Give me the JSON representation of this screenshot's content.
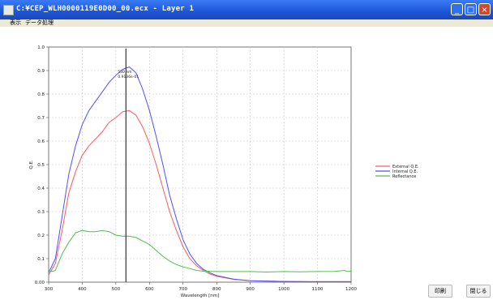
{
  "window": {
    "title": "C:¥CEP_WLH0000119E0D00_00.ecx - Layer 1",
    "buttons": {
      "minimize": "_",
      "maximize": "□",
      "close": "×"
    }
  },
  "menu": [
    "表示",
    "データ処理"
  ],
  "buttons": {
    "print": "印刷",
    "close": "閉じる"
  },
  "cursor_readout": {
    "line1": "530 nm",
    "line2": "0.9136e-01"
  },
  "colors": {
    "external_qe": "#ff5a5a",
    "internal_qe": "#5050ff",
    "reflectance": "#4fbf4f",
    "cursor": "#333333"
  },
  "chart_data": {
    "type": "line",
    "xlabel": "Wavelength [nm]",
    "ylabel": "Q.E.",
    "xlim": [
      300,
      1200
    ],
    "ylim": [
      0,
      1.0
    ],
    "xticks": [
      300,
      400,
      500,
      600,
      700,
      800,
      900,
      1000,
      1100,
      1200
    ],
    "yticks": [
      0,
      0.1,
      0.2,
      0.3,
      0.4,
      0.5,
      0.6,
      0.7,
      0.8,
      0.9,
      1.0
    ],
    "ytick_labels": [
      "0.00",
      "0.1",
      "0.2",
      "0.3",
      "0.4",
      "0.5",
      "0.6",
      "0.7",
      "0.8",
      "0.9",
      "1.0"
    ],
    "grid": true,
    "legend_position": "right",
    "cursor_x": 530,
    "series": [
      {
        "name": "External Q.E.",
        "color": "#ff5a5a",
        "x": [
          300,
          320,
          340,
          360,
          380,
          400,
          420,
          440,
          460,
          480,
          500,
          520,
          540,
          560,
          580,
          600,
          620,
          640,
          660,
          680,
          700,
          720,
          740,
          760,
          780,
          800,
          850,
          900,
          1000,
          1100,
          1200
        ],
        "y": [
          0.03,
          0.08,
          0.22,
          0.38,
          0.47,
          0.54,
          0.58,
          0.61,
          0.64,
          0.68,
          0.7,
          0.725,
          0.73,
          0.71,
          0.66,
          0.59,
          0.5,
          0.4,
          0.3,
          0.22,
          0.15,
          0.1,
          0.07,
          0.05,
          0.035,
          0.025,
          0.012,
          0.006,
          0.003,
          0.002,
          0.002
        ]
      },
      {
        "name": "Internal Q.E.",
        "color": "#5050ff",
        "x": [
          300,
          320,
          340,
          360,
          380,
          400,
          420,
          440,
          460,
          480,
          500,
          520,
          540,
          560,
          580,
          600,
          620,
          640,
          660,
          680,
          700,
          720,
          740,
          760,
          780,
          800,
          850,
          900,
          1000,
          1100,
          1200
        ],
        "y": [
          0.04,
          0.1,
          0.28,
          0.46,
          0.58,
          0.67,
          0.73,
          0.77,
          0.81,
          0.85,
          0.88,
          0.905,
          0.915,
          0.89,
          0.82,
          0.73,
          0.62,
          0.5,
          0.37,
          0.27,
          0.18,
          0.12,
          0.08,
          0.055,
          0.04,
          0.028,
          0.013,
          0.006,
          0.003,
          0.002,
          0.002
        ]
      },
      {
        "name": "Reflectance",
        "color": "#4fbf4f",
        "x": [
          300,
          310,
          320,
          340,
          360,
          380,
          400,
          420,
          440,
          460,
          480,
          500,
          520,
          540,
          560,
          580,
          600,
          620,
          640,
          660,
          680,
          700,
          720,
          740,
          760,
          800,
          850,
          900,
          950,
          1000,
          1050,
          1100,
          1150,
          1180,
          1190,
          1200
        ],
        "y": [
          0.05,
          0.045,
          0.05,
          0.12,
          0.17,
          0.21,
          0.22,
          0.215,
          0.215,
          0.22,
          0.215,
          0.2,
          0.195,
          0.195,
          0.19,
          0.175,
          0.16,
          0.135,
          0.11,
          0.09,
          0.075,
          0.065,
          0.058,
          0.05,
          0.047,
          0.045,
          0.045,
          0.045,
          0.043,
          0.045,
          0.044,
          0.045,
          0.046,
          0.05,
          0.045,
          0.047
        ]
      }
    ]
  }
}
